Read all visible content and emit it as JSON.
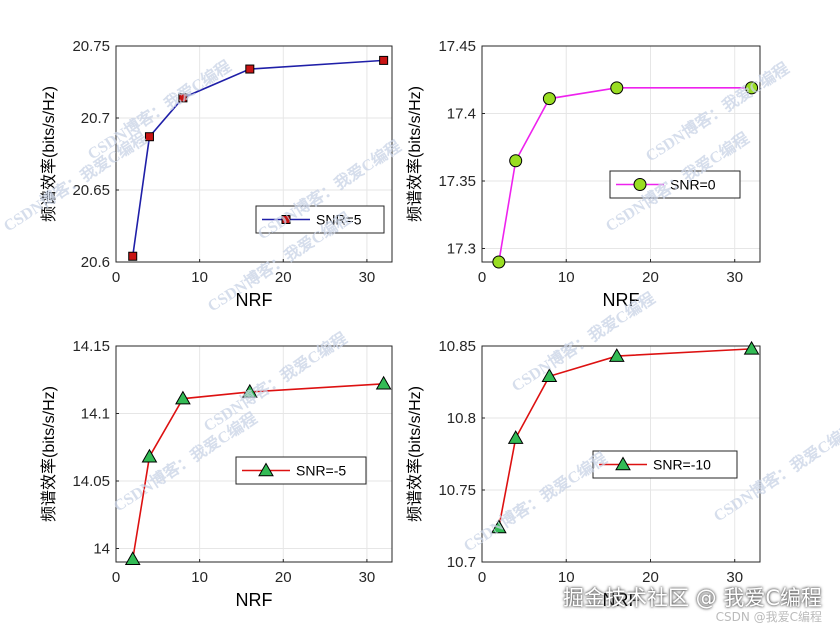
{
  "chart_data": [
    {
      "type": "line",
      "x": [
        2,
        4,
        8,
        16,
        32
      ],
      "series": [
        {
          "name": "SNR=5",
          "values": [
            20.604,
            20.687,
            20.714,
            20.734,
            20.74
          ]
        }
      ],
      "xlim": [
        0,
        33
      ],
      "ylim": [
        20.6,
        20.75
      ],
      "xticks": [
        "0",
        "10",
        "20",
        "30"
      ],
      "yticks": [
        "20.6",
        "20.65",
        "20.7",
        "20.75"
      ],
      "xlabel": "NRF",
      "ylabel": "频谱效率(bits/s/Hz)",
      "legend_position": "right",
      "line_color": "#1f1fa8",
      "marker": "square",
      "marker_color": "#c81414"
    },
    {
      "type": "line",
      "x": [
        2,
        4,
        8,
        16,
        32
      ],
      "series": [
        {
          "name": "SNR=0",
          "values": [
            17.29,
            17.365,
            17.411,
            17.419,
            17.419
          ]
        }
      ],
      "xlim": [
        0,
        33
      ],
      "ylim": [
        17.29,
        17.45
      ],
      "xticks": [
        "0",
        "10",
        "20",
        "30"
      ],
      "yticks": [
        "17.3",
        "17.35",
        "17.4",
        "17.45"
      ],
      "xlabel": "NRF",
      "ylabel": "频谱效率(bits/s/Hz)",
      "legend_position": "right",
      "line_color": "#ee22ee",
      "marker": "circle",
      "marker_color": "#99dd22"
    },
    {
      "type": "line",
      "x": [
        2,
        4,
        8,
        16,
        32
      ],
      "series": [
        {
          "name": "SNR=-5",
          "values": [
            13.992,
            14.068,
            14.111,
            14.116,
            14.122
          ]
        }
      ],
      "xlim": [
        0,
        33
      ],
      "ylim": [
        13.99,
        14.15
      ],
      "xticks": [
        "0",
        "10",
        "20",
        "30"
      ],
      "yticks": [
        "14",
        "14.05",
        "14.1",
        "14.15"
      ],
      "xlabel": "NRF",
      "ylabel": "频谱效率(bits/s/Hz)",
      "legend_position": "right",
      "line_color": "#dd1111",
      "marker": "triangle",
      "marker_color": "#33bb55"
    },
    {
      "type": "line",
      "x": [
        2,
        4,
        8,
        16,
        32
      ],
      "series": [
        {
          "name": "SNR=-10",
          "values": [
            10.724,
            10.786,
            10.829,
            10.843,
            10.848
          ]
        }
      ],
      "xlim": [
        0,
        33
      ],
      "ylim": [
        10.7,
        10.85
      ],
      "xticks": [
        "0",
        "10",
        "20",
        "30"
      ],
      "yticks": [
        "10.7",
        "10.75",
        "10.8",
        "10.85"
      ],
      "xlabel": "NRF",
      "ylabel": "频谱效率(bits/s/Hz)",
      "legend_position": "right",
      "line_color": "#dd1111",
      "marker": "triangle",
      "marker_color": "#33bb55"
    }
  ],
  "watermark": "CSDN博客：我爱C编程",
  "footer": {
    "main": "掘金技术社区 @ 我爱C编程",
    "sub": "CSDN @我爱C编程"
  }
}
